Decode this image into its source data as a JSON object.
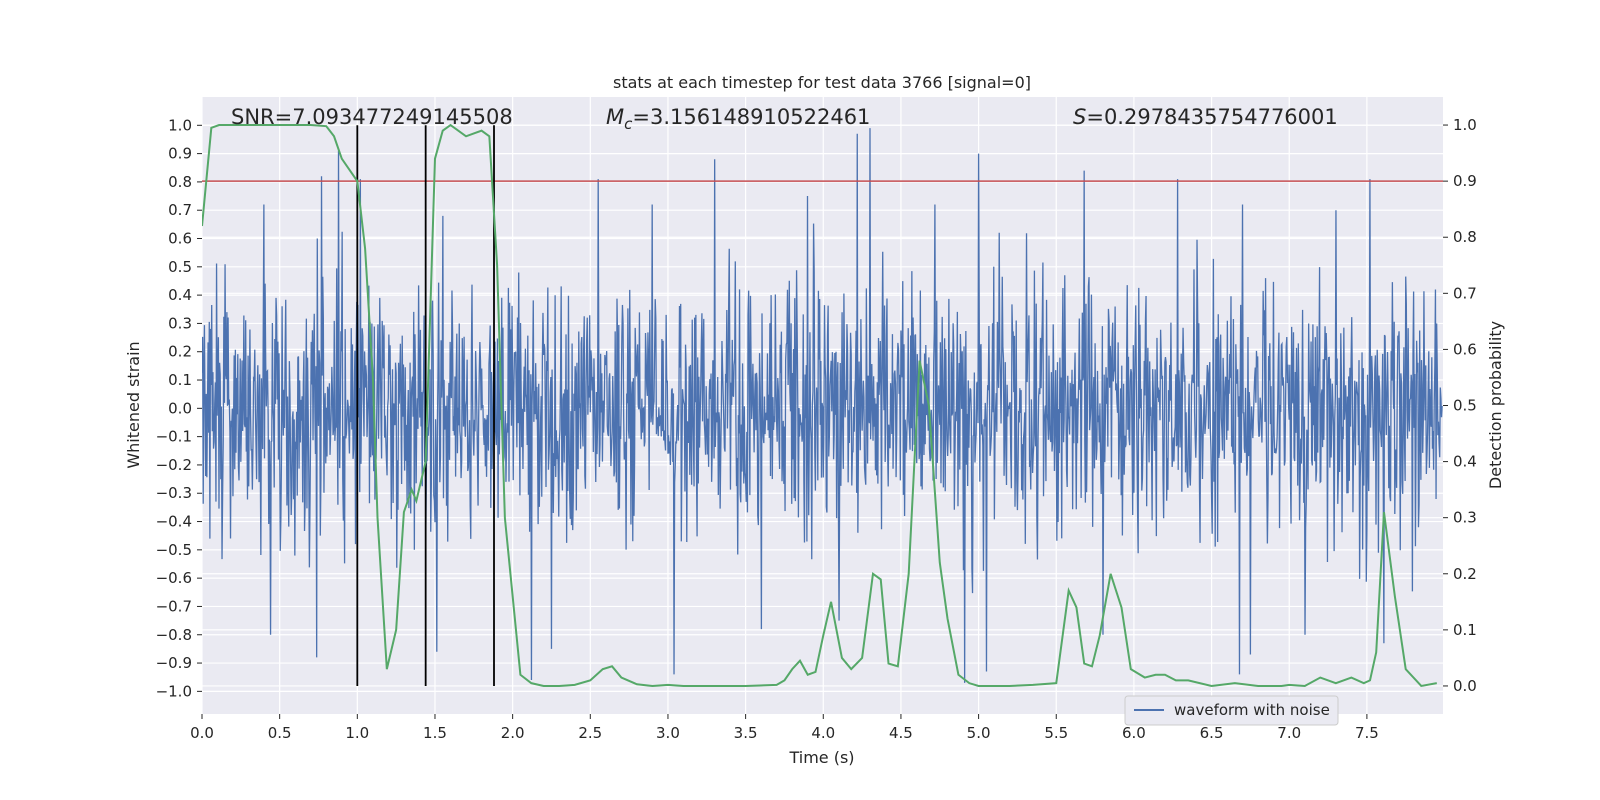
{
  "chart_data": {
    "type": "line",
    "title": "stats at each timestep for test data 3766 [signal=0]",
    "xlabel": "Time (s)",
    "ylabel": "Whitened strain",
    "ylabel_right": "Detection probability",
    "xlim": [
      0,
      7.99
    ],
    "ylim": [
      -1.08,
      1.1
    ],
    "ylim_right": [
      -0.05,
      1.05
    ],
    "xticks": [
      0.0,
      0.5,
      1.0,
      1.5,
      2.0,
      2.5,
      3.0,
      3.5,
      4.0,
      4.5,
      5.0,
      5.5,
      6.0,
      6.5,
      7.0,
      7.5
    ],
    "xtick_labels": [
      "0.0",
      "0.5",
      "1.0",
      "1.5",
      "2.0",
      "2.5",
      "3.0",
      "3.5",
      "4.0",
      "4.5",
      "5.0",
      "5.5",
      "6.0",
      "6.5",
      "7.0",
      "7.5"
    ],
    "yticks": [
      -1.0,
      -0.9,
      -0.8,
      -0.7,
      -0.6,
      -0.5,
      -0.4,
      -0.3,
      -0.2,
      -0.1,
      0.0,
      0.1,
      0.2,
      0.3,
      0.4,
      0.5,
      0.6,
      0.7,
      0.8,
      0.9,
      1.0
    ],
    "ytick_labels": [
      "−1.0",
      "−0.9",
      "−0.8",
      "−0.7",
      "−0.6",
      "−0.5",
      "−0.4",
      "−0.3",
      "−0.2",
      "−0.1",
      "0.0",
      "0.1",
      "0.2",
      "0.3",
      "0.4",
      "0.5",
      "0.6",
      "0.7",
      "0.8",
      "0.9",
      "1.0"
    ],
    "yticks_right": [
      0.0,
      0.1,
      0.2,
      0.3,
      0.4,
      0.5,
      0.6,
      0.7,
      0.8,
      0.9,
      1.0
    ],
    "ytick_labels_right": [
      "0.0",
      "0.1",
      "0.2",
      "0.3",
      "0.4",
      "0.5",
      "0.6",
      "0.7",
      "0.8",
      "0.9",
      "1.0"
    ],
    "grid": true,
    "legend": {
      "position": "bottom-right",
      "entries": [
        "waveform with noise"
      ]
    },
    "annotations": {
      "snr": "SNR=7.093477249145508",
      "mc_symbol": "M",
      "mc_sub": "c",
      "mc_value": "=3.156148910522461",
      "s_symbol": "S",
      "s_value": "=0.2978435754776001"
    },
    "threshold_right": 0.9,
    "vertical_lines_x": [
      1.0,
      1.44,
      1.88
    ],
    "series": [
      {
        "name": "waveform with noise",
        "color": "#4c72b0",
        "kind": "noise",
        "sample_rate": 256,
        "duration": 7.99,
        "typical_amplitude": 0.3,
        "upper_peaks": [
          [
            0.88,
            0.91
          ],
          [
            0.77,
            0.82
          ],
          [
            1.02,
            0.81
          ],
          [
            2.55,
            0.81
          ],
          [
            3.3,
            0.88
          ],
          [
            4.22,
            0.97
          ],
          [
            4.3,
            0.99
          ],
          [
            4.72,
            0.72
          ],
          [
            5.0,
            0.9
          ],
          [
            5.68,
            0.84
          ],
          [
            6.28,
            0.81
          ],
          [
            7.52,
            0.81
          ],
          [
            0.4,
            0.72
          ],
          [
            1.55,
            0.68
          ],
          [
            2.9,
            0.72
          ],
          [
            3.9,
            0.75
          ],
          [
            6.7,
            0.72
          ],
          [
            7.3,
            0.7
          ]
        ],
        "lower_peaks": [
          [
            0.74,
            -0.88
          ],
          [
            1.51,
            -0.86
          ],
          [
            2.12,
            -0.96
          ],
          [
            3.04,
            -0.94
          ],
          [
            4.91,
            -0.97
          ],
          [
            5.05,
            -0.93
          ],
          [
            6.68,
            -0.94
          ],
          [
            6.75,
            -0.87
          ],
          [
            7.61,
            -0.83
          ],
          [
            0.44,
            -0.8
          ],
          [
            2.25,
            -0.85
          ],
          [
            3.6,
            -0.78
          ],
          [
            4.1,
            -0.75
          ],
          [
            5.8,
            -0.8
          ],
          [
            7.1,
            -0.8
          ]
        ]
      },
      {
        "name": "detection probability",
        "color": "#55a868",
        "axis": "right",
        "x": [
          0.0,
          0.06,
          0.11,
          0.2,
          0.3,
          0.5,
          0.7,
          0.8,
          0.85,
          0.9,
          0.95,
          1.0,
          1.05,
          1.1,
          1.13,
          1.19,
          1.25,
          1.3,
          1.35,
          1.38,
          1.44,
          1.5,
          1.55,
          1.6,
          1.7,
          1.75,
          1.8,
          1.85,
          1.9,
          1.95,
          2.05,
          2.12,
          2.2,
          2.3,
          2.4,
          2.5,
          2.58,
          2.64,
          2.7,
          2.8,
          2.9,
          3.0,
          3.1,
          3.3,
          3.5,
          3.7,
          3.75,
          3.8,
          3.85,
          3.9,
          3.95,
          4.0,
          4.05,
          4.12,
          4.18,
          4.25,
          4.32,
          4.37,
          4.42,
          4.48,
          4.55,
          4.62,
          4.68,
          4.75,
          4.8,
          4.87,
          4.94,
          5.0,
          5.1,
          5.2,
          5.35,
          5.5,
          5.58,
          5.63,
          5.68,
          5.73,
          5.78,
          5.85,
          5.92,
          5.98,
          6.07,
          6.14,
          6.2,
          6.27,
          6.35,
          6.5,
          6.65,
          6.8,
          6.95,
          7.0,
          7.1,
          7.2,
          7.3,
          7.4,
          7.48,
          7.52,
          7.56,
          7.61,
          7.68,
          7.75,
          7.85,
          7.95
        ],
        "y": [
          0.82,
          0.995,
          1.0,
          1.0,
          1.0,
          1.0,
          1.0,
          0.998,
          0.98,
          0.94,
          0.92,
          0.9,
          0.78,
          0.55,
          0.3,
          0.03,
          0.1,
          0.31,
          0.35,
          0.33,
          0.4,
          0.94,
          0.99,
          1.0,
          0.98,
          0.985,
          0.99,
          0.98,
          0.75,
          0.3,
          0.02,
          0.005,
          0.0,
          0.0,
          0.002,
          0.01,
          0.03,
          0.035,
          0.015,
          0.003,
          0.0,
          0.002,
          0.0,
          0.0,
          0.0,
          0.002,
          0.01,
          0.03,
          0.045,
          0.02,
          0.025,
          0.09,
          0.15,
          0.05,
          0.03,
          0.05,
          0.2,
          0.19,
          0.04,
          0.035,
          0.2,
          0.58,
          0.5,
          0.22,
          0.12,
          0.02,
          0.005,
          0.0,
          0.0,
          0.0,
          0.002,
          0.005,
          0.17,
          0.14,
          0.04,
          0.035,
          0.09,
          0.2,
          0.14,
          0.03,
          0.015,
          0.02,
          0.02,
          0.01,
          0.01,
          0.0,
          0.005,
          0.0,
          0.0,
          0.002,
          0.0,
          0.015,
          0.005,
          0.015,
          0.005,
          0.01,
          0.06,
          0.31,
          0.16,
          0.03,
          0.0,
          0.005
        ]
      },
      {
        "name": "threshold",
        "color": "#c44e52",
        "axis": "right",
        "y": 0.9
      },
      {
        "name": "markers",
        "color": "#000000",
        "x": [
          1.0,
          1.44,
          1.88
        ]
      }
    ]
  }
}
